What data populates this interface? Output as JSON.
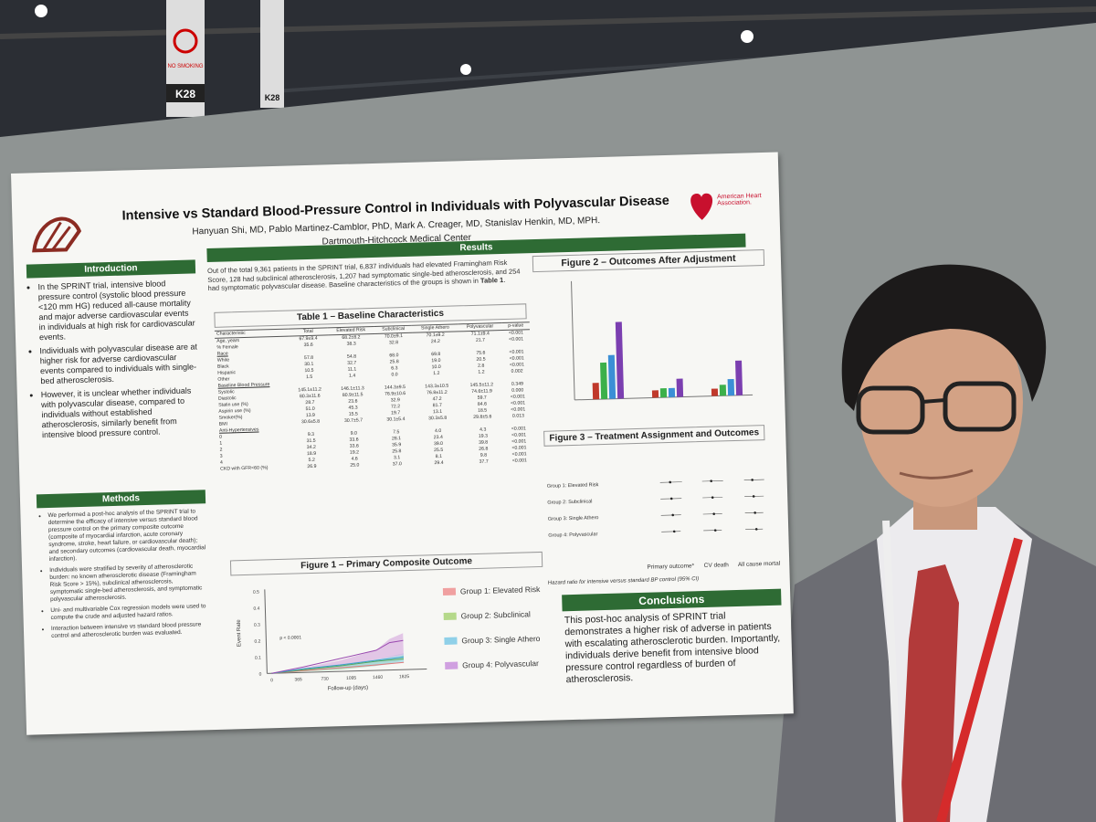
{
  "backdrop": {
    "sign_1": "K28",
    "sign_2": "K28",
    "sign_3": "NO SMOKING"
  },
  "poster": {
    "title": "Intensive vs Standard Blood-Pressure Control in Individuals with Polyvascular Disease",
    "authors": "Hanyuan Shi, MD, Pablo Martinez-Camblor, PhD, Mark A. Creager, MD, Stanislav Henkin, MD, MPH.",
    "affiliation": "Dartmouth-Hitchcock Medical Center",
    "logo_text": "American Heart Association."
  },
  "introduction": {
    "heading": "Introduction",
    "bullets": [
      "In the SPRINT trial, intensive blood pressure control (systolic blood pressure <120 mm HG) reduced all-cause mortality and major adverse cardiovascular events in individuals at high risk for cardiovascular events.",
      "Individuals with polyvascular disease are at higher risk for adverse cardiovascular events compared to individuals with single-bed atherosclerosis.",
      "However, it is unclear whether individuals with polyvascular disease, compared to individuals without established atherosclerosis, similarly benefit from intensive blood pressure control."
    ]
  },
  "methods": {
    "heading": "Methods",
    "bullets": [
      "We performed a post-hoc analysis of the SPRINT trial to determine the efficacy of intensive versus standard blood pressure control on the primary composite outcome (composite of myocardial infarction, acute coronary syndrome, stroke, heart failure, or cardiovascular death); and secondary outcomes (cardiovascular death, myocardial infarction).",
      "Individuals were stratified by severity of atherosclerotic burden: no known atherosclerotic disease (Framingham Risk Score > 15%), subclinical atherosclerosis, symptomatic single-bed atherosclerosis, and symptomatic polyvascular atherosclerosis.",
      "Uni- and multivariable Cox regression models were used to compute the crude and adjusted hazard ratios.",
      "Interaction between intensive vs standard blood pressure control and atherosclerotic burden was evaluated."
    ]
  },
  "results": {
    "heading": "Results",
    "text": "Out of the total 9,361 patients in the SPRINT trial, 6,837 individuals had elevated Framingham Risk Score, 128 had subclinical atherosclerosis, 1,207 had symptomatic single-bed atherosclerosis, and 254 had symptomatic polyvascular disease. Baseline characteristics of the groups is shown in",
    "ref": "Table 1",
    "end": "."
  },
  "table": {
    "title": "Table 1 – Baseline Characteristics",
    "header": [
      "Characteristic",
      "Total",
      "Elevated Risk",
      "Subclinical",
      "Single Athero",
      "Polyvascular",
      "p-value"
    ],
    "rows": [
      [
        "Age, years",
        "67.9±9.4",
        "68.2±8.2",
        "70.0±9.1",
        "70.1±9.2",
        "71.1±9.4",
        "<0.001"
      ],
      [
        "% Female",
        "35.6",
        "38.3",
        "32.8",
        "24.2",
        "21.7",
        "<0.001"
      ],
      [
        "Race"
      ],
      [
        "White",
        "57.8",
        "54.8",
        "68.0",
        "69.8",
        "75.6",
        "<0.001"
      ],
      [
        "Black",
        "30.1",
        "32.7",
        "25.8",
        "19.0",
        "20.5",
        "<0.001"
      ],
      [
        "Hispanic",
        "10.5",
        "11.1",
        "6.3",
        "10.0",
        "2.8",
        "<0.001"
      ],
      [
        "Other",
        "1.5",
        "1.4",
        "0.0",
        "1.2",
        "1.2",
        "0.002"
      ],
      [
        "Baseline Blood Pressure"
      ],
      [
        "Systolic",
        "145.1±11.2",
        "146.1±11.3",
        "144.3±9.5",
        "143.3±10.5",
        "145.5±11.2",
        "0.349"
      ],
      [
        "Diastolic",
        "80.3±11.6",
        "80.9±11.5",
        "76.9±10.6",
        "76.8±11.2",
        "74.6±11.9",
        "0.000"
      ],
      [
        "Statin use (%)",
        "28.7",
        "23.6",
        "32.9",
        "47.2",
        "59.7",
        "<0.001"
      ],
      [
        "Aspirin use (%)",
        "51.0",
        "45.3",
        "72.2",
        "81.7",
        "84.6",
        "<0.001"
      ],
      [
        "Smoker(%)",
        "13.9",
        "15.5",
        "19.7",
        "13.1",
        "18.5",
        "<0.001"
      ],
      [
        "BMI",
        "30.6±5.8",
        "30.7±5.7",
        "30.1±5.4",
        "30.3±5.8",
        "29.8±5.6",
        "0.013"
      ],
      [
        "Anti-Hypertensives"
      ],
      [
        "0",
        "9.3",
        "9.0",
        "7.5",
        "4.0",
        "4.3",
        "<0.001"
      ],
      [
        "1",
        "31.5",
        "33.6",
        "28.1",
        "23.4",
        "19.3",
        "<0.001"
      ],
      [
        "2",
        "34.2",
        "33.6",
        "35.9",
        "39.0",
        "39.8",
        "<0.001"
      ],
      [
        "3",
        "18.9",
        "19.2",
        "25.8",
        "25.5",
        "26.8",
        "<0.001"
      ],
      [
        "4",
        "5.2",
        "4.6",
        "3.1",
        "8.1",
        "9.8",
        "<0.001"
      ],
      [
        "CKD with GFR<60 (%)",
        "26.9",
        "25.0",
        "37.0",
        "29.4",
        "37.7",
        "<0.001"
      ]
    ]
  },
  "figure1": {
    "title": "Figure 1 – Primary Composite Outcome",
    "y_label": "Event Rate",
    "x_label": "Follow-up (days)",
    "p_value": "p < 0.0001",
    "yticks": [
      "0",
      "0.1",
      "0.2",
      "0.3",
      "0.4",
      "0.5"
    ],
    "xticks": [
      "0",
      "365",
      "730",
      "1095",
      "1460",
      "1825"
    ],
    "legend": [
      "Group 1: Elevated Risk",
      "Group 2: Subclinical",
      "Group 3: Single Athero",
      "Group 4: Polyvascular"
    ]
  },
  "figure2": {
    "title": "Figure 2 – Outcomes After Adjustment"
  },
  "figure3": {
    "title": "Figure 3 – Treatment Assignment and Outcomes",
    "groups": [
      "Group 1: Elevated Risk",
      "Group 2: Subclinical",
      "Group 3: Single Athero",
      "Group 4: Polyvascular"
    ],
    "columns": [
      "Primary outcome*",
      "CV death",
      "All cause mortality"
    ],
    "caption": "Hazard ratio for intensive versus standard BP control (95% CI)"
  },
  "conclusions": {
    "heading": "Conclusions",
    "text": "This post-hoc analysis of SPRINT trial demonstrates a higher risk of adverse in patients with escalating atherosclerotic burden. Importantly, individuals derive benefit from intensive blood pressure control regardless of burden of atherosclerosis."
  }
}
